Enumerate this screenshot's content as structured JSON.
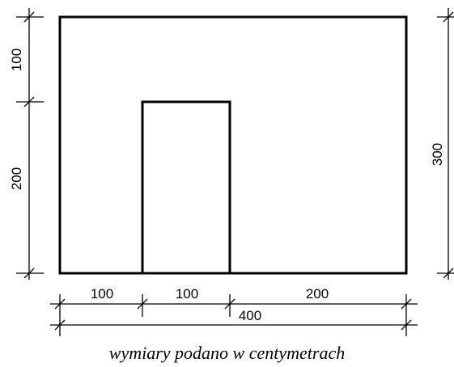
{
  "dimensions": {
    "left_top": "100",
    "left_bottom": "200",
    "right_total": "300",
    "bottom_segment_1": "100",
    "bottom_segment_2": "100",
    "bottom_segment_3": "200",
    "bottom_total": "400"
  },
  "caption": "wymiary podano w centymetrach",
  "colors": {
    "line": "#000000",
    "background": "#ffffff"
  }
}
